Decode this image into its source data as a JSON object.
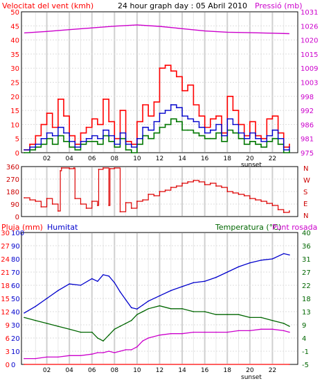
{
  "chart_data": [
    {
      "type": "line",
      "title": "24 hour graph day : 05 Abril 2010",
      "left_axis_label": "Velocitat del vent (kmh)",
      "right_axis_label": "Pressió (mb)",
      "x_ticks": [
        "02",
        "04",
        "06",
        "08",
        "10",
        "12",
        "14",
        "16",
        "18",
        "20",
        "22"
      ],
      "sunset_label": "sunset",
      "ylim_left": [
        0,
        50
      ],
      "yticks_left": [
        "0",
        "5",
        "10",
        "15",
        "20",
        "25",
        "30",
        "35",
        "40",
        "45",
        "50"
      ],
      "ylim_right": [
        975,
        1031
      ],
      "yticks_right": [
        "975",
        "981",
        "986",
        "992",
        "998",
        "1003",
        "1009",
        "1015",
        "1020",
        "1026",
        "1031"
      ],
      "grid": true,
      "series": [
        {
          "color": "#ff0000",
          "x": [
            0,
            0.5,
            1,
            1.5,
            2,
            2.5,
            3,
            3.5,
            4,
            4.5,
            5,
            5.5,
            6,
            6.5,
            7,
            7.5,
            8,
            8.5,
            9,
            9.5,
            10,
            10.5,
            11,
            11.5,
            12,
            12.5,
            13,
            13.5,
            14,
            14.5,
            15,
            15.5,
            16,
            16.5,
            17,
            17.5,
            18,
            18.5,
            19,
            19.5,
            20,
            20.5,
            21,
            21.5,
            22,
            22.5,
            23,
            23.5
          ],
          "values": [
            1,
            3,
            6,
            10,
            14,
            9,
            19,
            13,
            6,
            3,
            7,
            9,
            12,
            10,
            19,
            11,
            5,
            15,
            4,
            3,
            11,
            17,
            13,
            18,
            30,
            31,
            29,
            27,
            22,
            24,
            17,
            13,
            9,
            12,
            13,
            7,
            20,
            15,
            10,
            6,
            11,
            6,
            5,
            12,
            13,
            7,
            2,
            3
          ]
        },
        {
          "color": "#0000cc",
          "x": [
            0,
            0.5,
            1,
            1.5,
            2,
            2.5,
            3,
            3.5,
            4,
            4.5,
            5,
            5.5,
            6,
            6.5,
            7,
            7.5,
            8,
            8.5,
            9,
            9.5,
            10,
            10.5,
            11,
            11.5,
            12,
            12.5,
            13,
            13.5,
            14,
            14.5,
            15,
            15.5,
            16,
            16.5,
            17,
            17.5,
            18,
            18.5,
            19,
            19.5,
            20,
            20.5,
            21,
            21.5,
            22,
            22.5,
            23,
            23.5
          ],
          "values": [
            1,
            2,
            3,
            5,
            7,
            6,
            9,
            7,
            4,
            2,
            4,
            5,
            6,
            5,
            8,
            6,
            3,
            7,
            3,
            2,
            5,
            9,
            8,
            11,
            14,
            15,
            17,
            16,
            13,
            12,
            11,
            9,
            7,
            8,
            10,
            6,
            12,
            10,
            7,
            5,
            7,
            5,
            4,
            6,
            8,
            5,
            1,
            2
          ]
        },
        {
          "color": "#007700",
          "x": [
            0,
            0.5,
            1,
            1.5,
            2,
            2.5,
            3,
            3.5,
            4,
            4.5,
            5,
            5.5,
            6,
            6.5,
            7,
            7.5,
            8,
            8.5,
            9,
            9.5,
            10,
            10.5,
            11,
            11.5,
            12,
            12.5,
            13,
            13.5,
            14,
            14.5,
            15,
            15.5,
            16,
            16.5,
            17,
            17.5,
            18,
            18.5,
            19,
            19.5,
            20,
            20.5,
            21,
            21.5,
            22,
            22.5,
            23,
            23.5
          ],
          "values": [
            0,
            1,
            2,
            3,
            5,
            3,
            6,
            4,
            2,
            1,
            3,
            4,
            4,
            3,
            6,
            4,
            2,
            5,
            1,
            0,
            3,
            6,
            5,
            7,
            9,
            10,
            12,
            11,
            8,
            8,
            7,
            6,
            5,
            5,
            7,
            4,
            8,
            7,
            5,
            3,
            4,
            3,
            2,
            4,
            5,
            3,
            0,
            1
          ]
        },
        {
          "color": "#cc00cc",
          "axis": "right",
          "x": [
            0,
            2,
            4,
            6,
            8,
            10,
            12,
            14,
            16,
            18,
            20,
            22,
            23.5
          ],
          "values": [
            1022.6,
            1023.2,
            1023.9,
            1024.6,
            1025.3,
            1025.8,
            1025.2,
            1024.3,
            1023.4,
            1022.9,
            1022.7,
            1022.5,
            1022.3
          ]
        }
      ]
    },
    {
      "type": "line",
      "yticks_left": [
        "0",
        "90",
        "180",
        "270",
        "360"
      ],
      "ylim": [
        0,
        360
      ],
      "direction_labels": [
        "N",
        "W",
        "S",
        "E",
        "N"
      ],
      "grid": true,
      "series": [
        {
          "color": "#dd0000",
          "x": [
            0,
            0.5,
            1,
            1.5,
            2,
            2.5,
            3,
            3.2,
            3.3,
            4,
            4.4,
            4.5,
            5,
            5.5,
            6,
            6.5,
            6.6,
            7,
            7.5,
            7.6,
            8,
            8.5,
            9,
            9.5,
            10,
            10.5,
            11,
            11.5,
            12,
            12.5,
            13,
            13.5,
            14,
            14.5,
            15,
            15.5,
            16,
            16.5,
            17,
            17.5,
            18,
            18.5,
            19,
            19.5,
            20,
            20.5,
            21,
            21.5,
            22,
            22.5,
            23,
            23.5
          ],
          "values": [
            135,
            120,
            110,
            70,
            130,
            90,
            40,
            330,
            350,
            345,
            350,
            130,
            90,
            60,
            110,
            80,
            340,
            350,
            80,
            345,
            350,
            35,
            100,
            60,
            110,
            120,
            160,
            150,
            180,
            190,
            210,
            220,
            240,
            250,
            260,
            250,
            230,
            240,
            220,
            210,
            180,
            170,
            160,
            150,
            130,
            120,
            110,
            95,
            80,
            50,
            30,
            40
          ]
        }
      ]
    },
    {
      "type": "line",
      "left_axis_label": "Pluja (mm)",
      "humidity_label": "Humitat",
      "right_axis_label": "Temperatura (°C)",
      "dewpoint_label": "Punt rosada",
      "x_ticks": [
        "02",
        "04",
        "06",
        "08",
        "10",
        "12",
        "14",
        "16",
        "18",
        "20",
        "22"
      ],
      "sunset_label": "sunset",
      "ylim_left": [
        0,
        30
      ],
      "yticks_pluja": [
        "0",
        "3",
        "6",
        "9",
        "12",
        "15",
        "18",
        "21",
        "24",
        "27",
        "30"
      ],
      "yticks_humitat": [
        "0",
        "10",
        "20",
        "30",
        "40",
        "50",
        "60",
        "70",
        "80",
        "90",
        "100"
      ],
      "ylim_right": [
        -5,
        40
      ],
      "yticks_right": [
        "-5",
        "-1",
        "4",
        "9",
        "13",
        "18",
        "22",
        "27",
        "31",
        "36",
        "40"
      ],
      "grid": true,
      "series": [
        {
          "color": "#0000cc",
          "x": [
            0,
            1,
            2,
            3,
            4,
            5,
            6,
            6.5,
            7,
            7.5,
            8,
            8.5,
            9,
            9.5,
            10,
            10.5,
            11,
            12,
            13,
            14,
            15,
            16,
            17,
            18,
            19,
            20,
            21,
            22,
            23,
            23.5
          ],
          "values": [
            39,
            44,
            50,
            56,
            61,
            60,
            65,
            63,
            68,
            67,
            62,
            55,
            49,
            43,
            42,
            45,
            48,
            52,
            56,
            59,
            62,
            63,
            66,
            70,
            74,
            77,
            79,
            80,
            84,
            83
          ]
        },
        {
          "color": "#006600",
          "x": [
            0,
            1,
            2,
            3,
            4,
            5,
            6,
            6.5,
            7,
            7.5,
            8,
            8.5,
            9,
            9.5,
            10,
            10.5,
            11,
            12,
            13,
            14,
            15,
            16,
            17,
            18,
            19,
            20,
            21,
            22,
            23,
            23.5
          ],
          "values": [
            11,
            10,
            9,
            8,
            7,
            6,
            6,
            4,
            3,
            5,
            7,
            8,
            9,
            10,
            12,
            13,
            14,
            15,
            14,
            14,
            13,
            13,
            12,
            12,
            12,
            11,
            11,
            10,
            9,
            8
          ]
        },
        {
          "color": "#cc00cc",
          "x": [
            0,
            1,
            2,
            3,
            4,
            5,
            6,
            6.5,
            7,
            7.5,
            8,
            8.5,
            9,
            9.5,
            10,
            10.5,
            11,
            12,
            13,
            14,
            15,
            16,
            17,
            18,
            19,
            20,
            21,
            22,
            23,
            23.5
          ],
          "values": [
            -3,
            -3,
            -2.5,
            -2.5,
            -2,
            -2,
            -1.5,
            -1,
            -1,
            -0.5,
            -1,
            -0.5,
            0,
            0,
            1,
            3,
            4,
            5,
            5.5,
            5.5,
            6,
            6,
            6,
            6,
            6.5,
            6.5,
            7,
            7,
            6.5,
            6
          ]
        },
        {
          "color": "#ff0000",
          "axis": "pluja",
          "x": [
            0,
            23.5
          ],
          "values": [
            0,
            0
          ]
        }
      ]
    }
  ],
  "colors": {
    "wind": "#ff0000",
    "gust_avg": "#0000cc",
    "wind_min": "#007700",
    "pressure": "#cc00cc",
    "rain": "#ff0000",
    "humidity": "#0000cc",
    "temperature": "#006600",
    "dewpoint": "#cc00cc",
    "direction": "#dd0000"
  }
}
